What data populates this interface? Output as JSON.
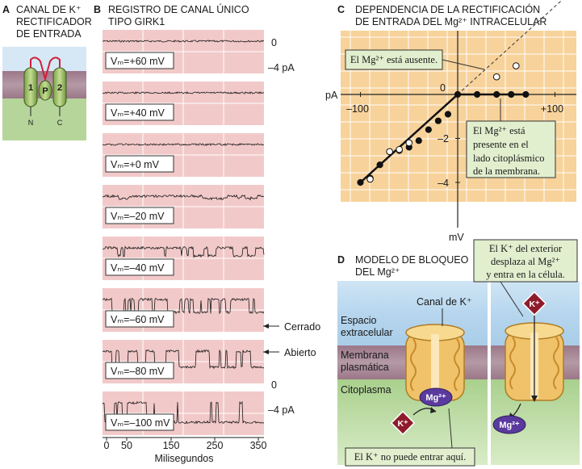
{
  "panel_a": {
    "letter": "A",
    "title_lines": [
      "CANAL DE K⁺",
      "RECTIFICADOR",
      "DE ENTRADA"
    ],
    "helix_1": "1",
    "helix_2": "2",
    "pore": "P",
    "n_label": "N",
    "c_label": "C"
  },
  "panel_b": {
    "letter": "B",
    "title_lines": [
      "REGISTRO DE CANAL ÚNICO",
      "TIPO GIRK1"
    ],
    "traces": [
      {
        "vm": "Vₘ=+60 mV"
      },
      {
        "vm": "Vₘ=+40 mV"
      },
      {
        "vm": "Vₘ=+0 mV"
      },
      {
        "vm": "Vₘ=–20 mV"
      },
      {
        "vm": "Vₘ=–40 mV"
      },
      {
        "vm": "Vₘ=–60 mV"
      },
      {
        "vm": "Vₘ=–80 mV"
      },
      {
        "vm": "Vₘ=–100 mV"
      }
    ],
    "scale_top": {
      "zero": "0",
      "minus4": "–4 pA"
    },
    "scale_bottom": {
      "zero": "0",
      "minus4": "–4 pA"
    },
    "closed_label": "Cerrado",
    "open_label": "Abierto",
    "x_ticks": [
      "0",
      "50",
      "150",
      "250",
      "350"
    ],
    "x_axis_label": "Milisegundos"
  },
  "panel_c": {
    "letter": "C",
    "title_lines": [
      "DEPENDENCIA DE LA RECTIFICACIÓN",
      "DE ENTRADA DEL Mg²⁺ INTRACELULAR"
    ],
    "y_axis_label": "pA",
    "x_axis_label": "mV",
    "x_tick_labels": [
      "–100",
      "+100"
    ],
    "y_tick_labels": [
      "0",
      "–2",
      "–4"
    ],
    "callout_absent": "El Mg²⁺ está ausente.",
    "callout_present_lines": [
      "El Mg²⁺ está",
      "presente en el",
      "lado citoplásmico",
      "de la membrana."
    ]
  },
  "chart_data": {
    "type": "scatter",
    "title": "DEPENDENCIA DE LA RECTIFICACIÓN DE ENTRADA DEL Mg²⁺ INTRACELULAR",
    "xlabel": "mV",
    "ylabel": "pA",
    "xlim": [
      -110,
      110
    ],
    "ylim": [
      -4.6,
      2.5
    ],
    "grid": true,
    "series": [
      {
        "x": [
          -100,
          -90,
          -80,
          -70,
          -60,
          -50,
          -40,
          -30,
          -20,
          -10,
          0,
          20,
          40,
          55,
          70
        ],
        "y": [
          -4.0,
          -3.8,
          -3.2,
          -2.6,
          -2.55,
          -2.4,
          -2.1,
          -1.6,
          -1.2,
          -0.9,
          0.0,
          0.0,
          0.0,
          0.0,
          0.0
        ],
        "marker": "filled",
        "color": "#000000"
      },
      {
        "x": [
          -90,
          -70,
          -60,
          -50,
          40,
          60
        ],
        "y": [
          -3.85,
          -2.6,
          -2.5,
          -2.2,
          0.8,
          1.3
        ],
        "marker": "open",
        "color": "#000000"
      }
    ]
  },
  "panel_d": {
    "letter": "D",
    "title_lines": [
      "MODELO DE BLOQUEO",
      "DEL Mg²⁺"
    ],
    "extracellular": [
      "Espacio",
      "extracelular"
    ],
    "membrane": [
      "Membrana",
      "plasmática"
    ],
    "cytoplasm": "Citoplasma",
    "channel_label": "Canal de K⁺",
    "mg_ion": "Mg²⁺",
    "k_ion": "K⁺",
    "callout_bottom": "El K⁺ no puede entrar aquí.",
    "callout_top_lines": [
      "El K⁺ del exterior",
      "desplaza al Mg²⁺",
      "y entra en la célula."
    ]
  },
  "colors": {
    "trace_bg": "#f2c9c9",
    "chart_bg": "#f7d29a",
    "callout_bg": "#e2efcf",
    "extracellular": "#b9d7ef",
    "membrane": "#a07b8f",
    "cytoplasm": "#a9d08d",
    "channel": "#f0c36b",
    "mg": "#5a3a9e",
    "k": "#8e1b2b"
  }
}
